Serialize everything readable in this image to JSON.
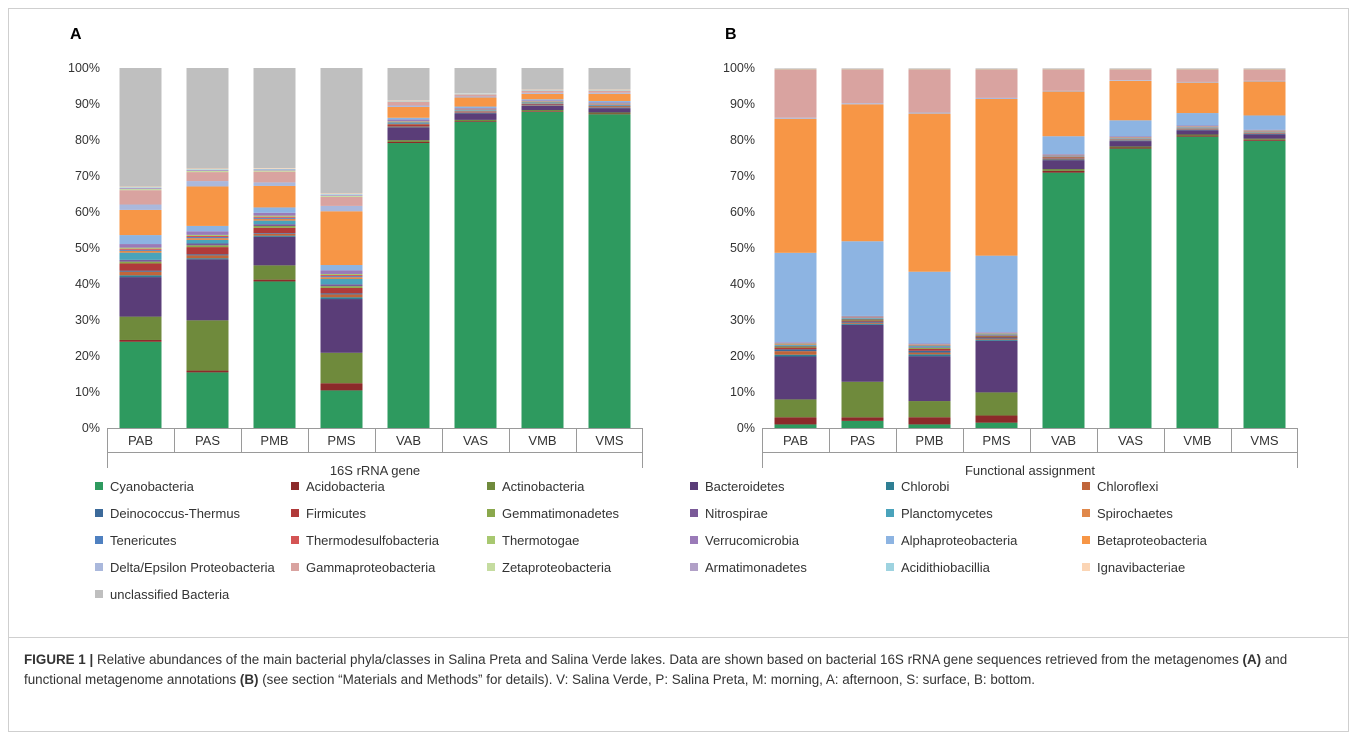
{
  "figure": {
    "caption_label": "FIGURE 1 |",
    "caption_parts": [
      {
        "text": " Relative abundances of the main bacterial phyla/classes in Salina Preta and Salina Verde lakes. Data are shown based on bacterial 16S rRNA gene sequences retrieved from the metagenomes ",
        "bold": false
      },
      {
        "text": "(A)",
        "bold": true
      },
      {
        "text": " and functional metagenome annotations ",
        "bold": false
      },
      {
        "text": "(B)",
        "bold": true
      },
      {
        "text": " (see section “Materials and Methods” for details). V: Salina Verde, P: Salina Preta, M: morning, A: afternoon, S: surface, B: bottom.",
        "bold": false
      }
    ]
  },
  "legend": [
    {
      "name": "Cyanobacteria",
      "color": "#2e9a5f"
    },
    {
      "name": "Acidobacteria",
      "color": "#8c2a2a"
    },
    {
      "name": "Actinobacteria",
      "color": "#6f8a3c"
    },
    {
      "name": "Bacteroidetes",
      "color": "#5a3d78"
    },
    {
      "name": "Chlorobi",
      "color": "#2f7f94"
    },
    {
      "name": "Chloroflexi",
      "color": "#c0653a"
    },
    {
      "name": "Deinococcus-Thermus",
      "color": "#3c6a9a"
    },
    {
      "name": "Firmicutes",
      "color": "#b03a3a"
    },
    {
      "name": "Gemmatimonadetes",
      "color": "#8aa84c"
    },
    {
      "name": "Nitrospirae",
      "color": "#7a5a98"
    },
    {
      "name": "Planctomycetes",
      "color": "#4aa3bb"
    },
    {
      "name": "Spirochaetes",
      "color": "#e0884a"
    },
    {
      "name": "Tenericutes",
      "color": "#4f80c0"
    },
    {
      "name": "Thermodesulfobacteria",
      "color": "#d45454"
    },
    {
      "name": "Thermotogae",
      "color": "#a8c870"
    },
    {
      "name": "Verrucomicrobia",
      "color": "#9a7ab8"
    },
    {
      "name": "Alphaproteobacteria",
      "color": "#8db4e2"
    },
    {
      "name": "Betaproteobacteria",
      "color": "#f79646"
    },
    {
      "name": "Delta/Epsilon Proteobacteria",
      "color": "#aab8dc"
    },
    {
      "name": "Gammaproteobacteria",
      "color": "#d9a3a0"
    },
    {
      "name": "Zetaproteobacteria",
      "color": "#c5dca0"
    },
    {
      "name": "Armatimonadetes",
      "color": "#b1a0c7"
    },
    {
      "name": "Acidithiobacillia",
      "color": "#9ed3e0"
    },
    {
      "name": "Ignavibacteriae",
      "color": "#fbd5b5"
    },
    {
      "name": "unclassified Bacteria",
      "color": "#bfbfbf"
    }
  ],
  "chart_data": [
    {
      "type": "bar",
      "stacked": true,
      "panel_label": "A",
      "xlabel": "16S rRNA gene",
      "ylabel": "",
      "ylim": [
        0,
        100
      ],
      "yticks": [
        "0%",
        "10%",
        "20%",
        "30%",
        "40%",
        "50%",
        "60%",
        "70%",
        "80%",
        "90%",
        "100%"
      ],
      "categories": [
        "PAB",
        "PAS",
        "PMB",
        "PMS",
        "VAB",
        "VAS",
        "VMB",
        "VMS"
      ],
      "series": [
        {
          "name": "Cyanobacteria",
          "values": [
            24,
            15.5,
            41,
            10.5,
            79,
            85,
            88,
            87.5
          ]
        },
        {
          "name": "Acidobacteria",
          "values": [
            0.5,
            0.5,
            0.5,
            2,
            0.3,
            0.2,
            0.2,
            0.2
          ]
        },
        {
          "name": "Actinobacteria",
          "values": [
            6.5,
            14,
            4,
            8.5,
            0.5,
            0.3,
            0.3,
            0.3
          ]
        },
        {
          "name": "Bacteroidetes",
          "values": [
            11,
            17,
            8,
            15,
            3.5,
            1.8,
            1.2,
            1.2
          ]
        },
        {
          "name": "Chlorobi",
          "values": [
            0.5,
            0.3,
            0.3,
            0.5,
            0.1,
            0.1,
            0.1,
            0.1
          ]
        },
        {
          "name": "Chloroflexi",
          "values": [
            1,
            0.8,
            0.5,
            0.8,
            0.2,
            0.1,
            0.1,
            0.1
          ]
        },
        {
          "name": "Deinococcus-Thermus",
          "values": [
            0.3,
            0.3,
            0.2,
            0.3,
            0.1,
            0.1,
            0.1,
            0.1
          ]
        },
        {
          "name": "Firmicutes",
          "values": [
            2,
            2,
            1.5,
            1.5,
            0.5,
            0.2,
            0.2,
            0.2
          ]
        },
        {
          "name": "Gemmatimonadetes",
          "values": [
            0.5,
            0.5,
            0.5,
            0.5,
            0.1,
            0.1,
            0.1,
            0.1
          ]
        },
        {
          "name": "Nitrospirae",
          "values": [
            0.5,
            0.5,
            0.5,
            0.5,
            0.1,
            0.1,
            0.1,
            0.1
          ]
        },
        {
          "name": "Planctomycetes",
          "values": [
            2,
            1,
            1,
            1.5,
            0.3,
            0.2,
            0.2,
            0.2
          ]
        },
        {
          "name": "Spirochaetes",
          "values": [
            0.5,
            0.5,
            0.5,
            0.5,
            0.1,
            0.1,
            0.1,
            0.1
          ]
        },
        {
          "name": "Tenericutes",
          "values": [
            0.3,
            0.3,
            0.3,
            0.3,
            0.1,
            0.1,
            0.1,
            0.1
          ]
        },
        {
          "name": "Thermodesulfobacteria",
          "values": [
            0.3,
            0.3,
            0.3,
            0.3,
            0.1,
            0.1,
            0.1,
            0.1
          ]
        },
        {
          "name": "Thermotogae",
          "values": [
            0.3,
            0.3,
            0.3,
            0.3,
            0.1,
            0.1,
            0.1,
            0.1
          ]
        },
        {
          "name": "Verrucomicrobia",
          "values": [
            1,
            1,
            0.8,
            1,
            0.4,
            0.2,
            0.2,
            0.3
          ]
        },
        {
          "name": "Alphaproteobacteria",
          "values": [
            2.5,
            1.5,
            1.5,
            1.5,
            0.5,
            0.4,
            0.3,
            0.4
          ]
        },
        {
          "name": "Betaproteobacteria",
          "values": [
            7,
            11,
            6,
            15,
            3,
            2.5,
            1.5,
            2
          ]
        },
        {
          "name": "Delta/Epsilon Proteobacteria",
          "values": [
            1.5,
            1.5,
            1,
            1.5,
            0.4,
            0.3,
            0.3,
            0.3
          ]
        },
        {
          "name": "Gammaproteobacteria",
          "values": [
            4,
            2.5,
            3,
            2.5,
            1,
            0.5,
            0.5,
            0.5
          ]
        },
        {
          "name": "Zetaproteobacteria",
          "values": [
            0.3,
            0.3,
            0.3,
            0.3,
            0.1,
            0.1,
            0.1,
            0.1
          ]
        },
        {
          "name": "Armatimonadetes",
          "values": [
            0.3,
            0.3,
            0.3,
            0.3,
            0.1,
            0.1,
            0.1,
            0.1
          ]
        },
        {
          "name": "Acidithiobacillia",
          "values": [
            0.2,
            0.2,
            0.2,
            0.2,
            0.1,
            0.1,
            0.1,
            0.1
          ]
        },
        {
          "name": "Ignavibacteriae",
          "values": [
            0.2,
            0.2,
            0.2,
            0.2,
            0.1,
            0.1,
            0.1,
            0.1
          ]
        },
        {
          "name": "unclassified Bacteria",
          "values": [
            33,
            28,
            28,
            35,
            9,
            7,
            6,
            6
          ]
        }
      ]
    },
    {
      "type": "bar",
      "stacked": true,
      "panel_label": "B",
      "xlabel": "Functional assignment",
      "ylabel": "",
      "ylim": [
        0,
        100
      ],
      "yticks": [
        "0%",
        "10%",
        "20%",
        "30%",
        "40%",
        "50%",
        "60%",
        "70%",
        "80%",
        "90%",
        "100%"
      ],
      "categories": [
        "PAB",
        "PAS",
        "PMB",
        "PMS",
        "VAB",
        "VAS",
        "VMB",
        "VMS"
      ],
      "series": [
        {
          "name": "Cyanobacteria",
          "values": [
            1,
            2,
            1,
            1.5,
            71.5,
            78,
            81.5,
            80.5
          ]
        },
        {
          "name": "Acidobacteria",
          "values": [
            2,
            1,
            2,
            2,
            0.5,
            0.3,
            0.3,
            0.3
          ]
        },
        {
          "name": "Actinobacteria",
          "values": [
            5,
            10,
            4.5,
            6.5,
            0.5,
            0.3,
            0.3,
            0.3
          ]
        },
        {
          "name": "Bacteroidetes",
          "values": [
            12,
            16,
            12.5,
            14.5,
            2.5,
            1.5,
            1.2,
            1.2
          ]
        },
        {
          "name": "Chlorobi",
          "values": [
            0.5,
            0.3,
            0.5,
            0.3,
            0.2,
            0.1,
            0.1,
            0.1
          ]
        },
        {
          "name": "Chloroflexi",
          "values": [
            1,
            0.3,
            0.5,
            0.3,
            0.2,
            0.1,
            0.1,
            0.1
          ]
        },
        {
          "name": "Deinococcus-Thermus",
          "values": [
            0.5,
            0.3,
            0.5,
            0.3,
            0.1,
            0.1,
            0.1,
            0.1
          ]
        },
        {
          "name": "Firmicutes",
          "values": [
            0.5,
            0.3,
            0.5,
            0.3,
            0.3,
            0.1,
            0.1,
            0.1
          ]
        },
        {
          "name": "Gemmatimonadetes",
          "values": [
            0.3,
            0.3,
            0.3,
            0.2,
            0.1,
            0.1,
            0.1,
            0.1
          ]
        },
        {
          "name": "Nitrospirae",
          "values": [
            0.2,
            0.2,
            0.2,
            0.2,
            0.1,
            0.1,
            0.1,
            0.1
          ]
        },
        {
          "name": "Planctomycetes",
          "values": [
            0.3,
            0.2,
            0.3,
            0.2,
            0.1,
            0.1,
            0.1,
            0.1
          ]
        },
        {
          "name": "Spirochaetes",
          "values": [
            0.2,
            0.1,
            0.2,
            0.1,
            0.1,
            0.1,
            0.1,
            0.1
          ]
        },
        {
          "name": "Tenericutes",
          "values": [
            0.1,
            0.1,
            0.1,
            0.1,
            0.1,
            0.1,
            0.1,
            0.1
          ]
        },
        {
          "name": "Thermodesulfobacteria",
          "values": [
            0.1,
            0.1,
            0.1,
            0.1,
            0.1,
            0.1,
            0.1,
            0.1
          ]
        },
        {
          "name": "Thermotogae",
          "values": [
            0.1,
            0.1,
            0.1,
            0.1,
            0.1,
            0.1,
            0.1,
            0.1
          ]
        },
        {
          "name": "Verrucomicrobia",
          "values": [
            0.2,
            0.2,
            0.2,
            0.2,
            0.2,
            0.2,
            0.2,
            0.2
          ]
        },
        {
          "name": "Alphaproteobacteria",
          "values": [
            25,
            21,
            20,
            21.5,
            5,
            4.5,
            3.5,
            4
          ]
        },
        {
          "name": "Betaproteobacteria",
          "values": [
            37.5,
            38.5,
            44,
            44,
            12.5,
            11,
            8.5,
            9.5
          ]
        },
        {
          "name": "Delta/Epsilon Proteobacteria",
          "values": [
            0.3,
            0.3,
            0.3,
            0.3,
            0.2,
            0.2,
            0.2,
            0.2
          ]
        },
        {
          "name": "Gammaproteobacteria",
          "values": [
            13.5,
            9.5,
            12,
            8,
            6,
            3,
            3.5,
            3.2
          ]
        },
        {
          "name": "Zetaproteobacteria",
          "values": [
            0.1,
            0.1,
            0.1,
            0.1,
            0.1,
            0.1,
            0.1,
            0.1
          ]
        },
        {
          "name": "Armatimonadetes",
          "values": [
            0.1,
            0.1,
            0.1,
            0.1,
            0.1,
            0.1,
            0.1,
            0.1
          ]
        },
        {
          "name": "Acidithiobacillia",
          "values": [
            0.1,
            0.1,
            0.1,
            0.1,
            0.1,
            0.1,
            0.1,
            0.1
          ]
        },
        {
          "name": "Ignavibacteriae",
          "values": [
            0.1,
            0.1,
            0.1,
            0.1,
            0.1,
            0.1,
            0.1,
            0.1
          ]
        },
        {
          "name": "unclassified Bacteria",
          "values": [
            0,
            0,
            0,
            0,
            0,
            0,
            0,
            0
          ]
        }
      ]
    }
  ]
}
